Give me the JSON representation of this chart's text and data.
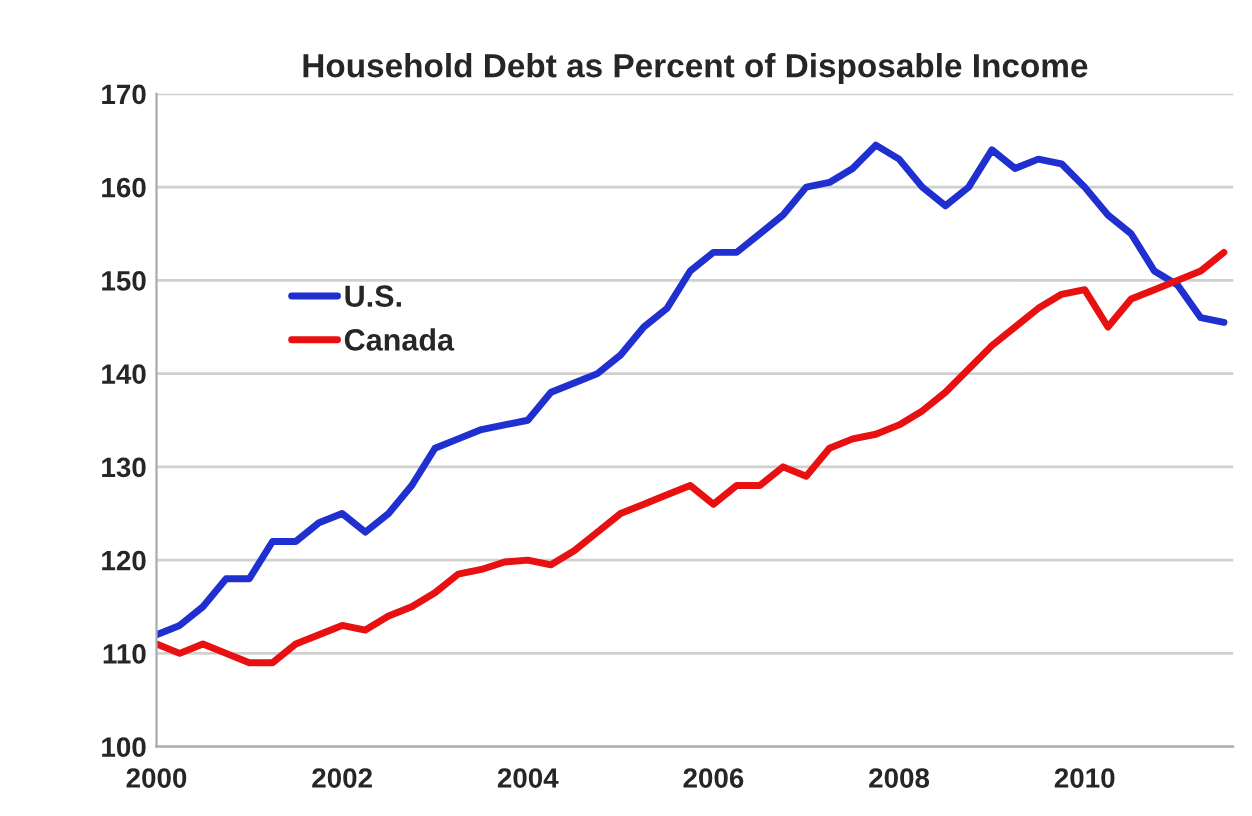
{
  "chart_data": {
    "type": "line",
    "title": "Household Debt as Percent of Disposable Income",
    "x": [
      2000.0,
      2000.25,
      2000.5,
      2000.75,
      2001.0,
      2001.25,
      2001.5,
      2001.75,
      2002.0,
      2002.25,
      2002.5,
      2002.75,
      2003.0,
      2003.25,
      2003.5,
      2003.75,
      2004.0,
      2004.25,
      2004.5,
      2004.75,
      2005.0,
      2005.25,
      2005.5,
      2005.75,
      2006.0,
      2006.25,
      2006.5,
      2006.75,
      2007.0,
      2007.25,
      2007.5,
      2007.75,
      2008.0,
      2008.25,
      2008.5,
      2008.75,
      2009.0,
      2009.25,
      2009.5,
      2009.75,
      2010.0,
      2010.25,
      2010.5,
      2010.75,
      2011.0,
      2011.25,
      2011.5
    ],
    "series": [
      {
        "name": "U.S.",
        "color": "#1f2fd0",
        "values": [
          112,
          113,
          115,
          118,
          118,
          122,
          122,
          124,
          125,
          123,
          125,
          128,
          132,
          133,
          134,
          134.5,
          135,
          138,
          139,
          140,
          142,
          145,
          147,
          151,
          153,
          153,
          155,
          157,
          160,
          160.5,
          162,
          164.5,
          163,
          160,
          158,
          160,
          164,
          162,
          163,
          162.5,
          160,
          157,
          155,
          151,
          149.5,
          146,
          145.5
        ]
      },
      {
        "name": "Canada",
        "color": "#e81010",
        "values": [
          111,
          110,
          111,
          110,
          109,
          109,
          111,
          112,
          113,
          112.5,
          114,
          115,
          116.5,
          118.5,
          119,
          119.8,
          120,
          119.5,
          121,
          123,
          125,
          126,
          127,
          128,
          126,
          128,
          128,
          130,
          129,
          132,
          133,
          133.5,
          134.5,
          136,
          138,
          140.5,
          143,
          145,
          147,
          148.5,
          149,
          145,
          148,
          149,
          150,
          151,
          153
        ]
      }
    ],
    "xlim": [
      2000,
      2011.6
    ],
    "xticks": [
      2000,
      2002,
      2004,
      2006,
      2008,
      2010
    ],
    "ylim": [
      100,
      170
    ],
    "yticks": [
      100,
      110,
      120,
      130,
      140,
      150,
      160,
      170
    ],
    "grid": "y",
    "legend": "top left",
    "marker": "none",
    "line_style": "solid"
  }
}
